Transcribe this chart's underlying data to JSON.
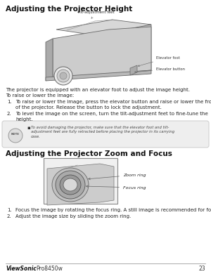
{
  "bg_color": "#ffffff",
  "title1": "Adjusting the Projector Height",
  "title2": "Adjusting the Projector Zoom and Focus",
  "footer_brand": "ViewSonic",
  "footer_model": "Pro8450w",
  "footer_page": "23",
  "body_text1a": "The projector is equipped with an elevator foot to adjust the image height.",
  "body_text1b": "To raise or lower the image:",
  "item1_text": "To raise or lower the image, press the elevator button and raise or lower the front\nof the projector. Release the button to lock the adjustment.",
  "item2_text": "To level the image on the screen, turn the tilt-adjustment feet to fine-tune the\nheight.",
  "note_text": "To avoid damaging the projector, make sure that the elevator foot and tilt-\nadjustment feet are fully retracted before placing the projector in its carrying\ncase.",
  "zoom_label": "Zoom ring",
  "focus_label": "Focus ring",
  "tilt_label": "Tilt-adjustment feet",
  "elevator_foot_label": "Elevator foot",
  "elevator_button_label": "Elevator button",
  "item3_text": "Focus the image by rotating the focus ring. A still image is recommended for focusing.",
  "item4_text": "Adjust the image size by sliding the zoom ring.",
  "font_size_title": 7.5,
  "font_size_body": 5.0,
  "font_size_label": 3.8,
  "font_size_footer": 5.5
}
